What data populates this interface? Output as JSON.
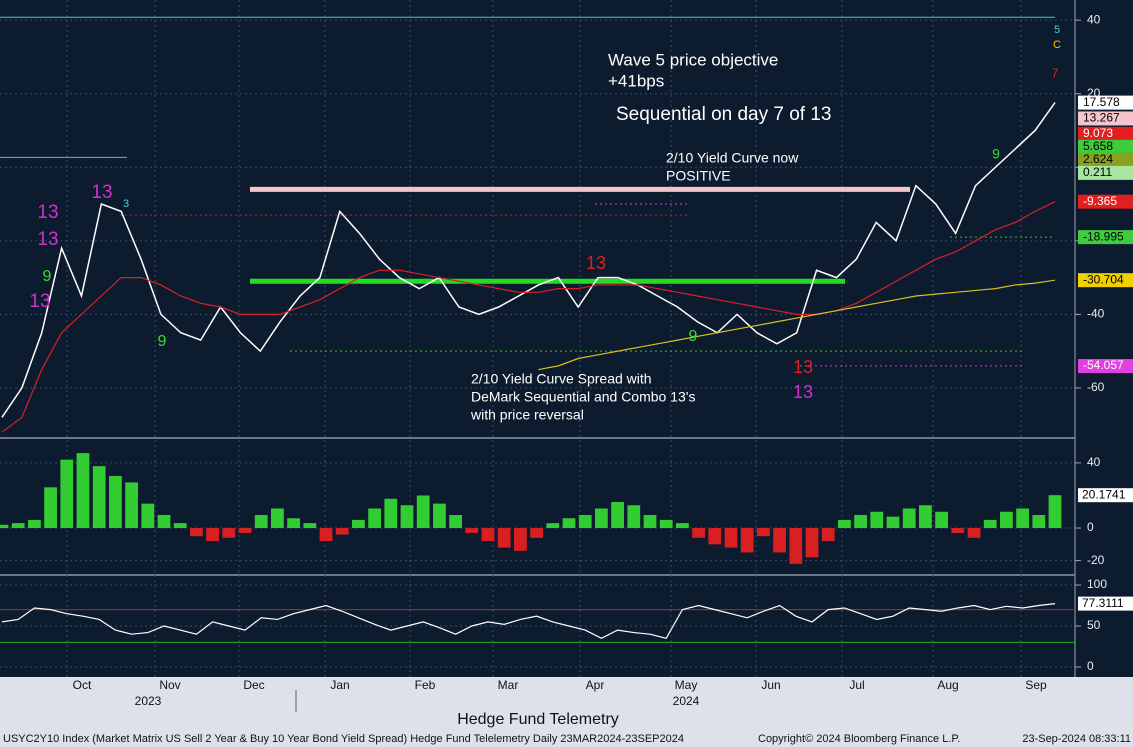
{
  "chart_data": [
    {
      "type": "line",
      "ylim": [
        -72.8,
        41.4
      ],
      "yticks": [
        -60,
        -40,
        -20,
        0,
        20,
        40
      ],
      "grid": true,
      "series": [
        {
          "name": "USYC2Y10 Index",
          "color": "#ffffff",
          "values": [
            -68,
            -60,
            -45,
            -22,
            -35,
            -10,
            -12,
            -25,
            -40,
            -45,
            -47,
            -38,
            -45,
            -50,
            -42,
            -35,
            -30,
            -12,
            -18,
            -25,
            -30,
            -33,
            -30,
            -38,
            -40,
            -38,
            -35,
            -32,
            -30,
            -38,
            -30,
            -30,
            -32,
            -35,
            -38,
            -42,
            -45,
            -40,
            -45,
            -48,
            -45,
            -28,
            -30,
            -25,
            -15,
            -20,
            -5,
            -10,
            -18,
            -5,
            0,
            5,
            10,
            17.578
          ]
        },
        {
          "name": "MA red",
          "color": "#d8202a",
          "values": [
            -72,
            -68,
            -55,
            -45,
            -40,
            -35,
            -30,
            -30,
            -32,
            -35,
            -37,
            -38,
            -40,
            -40,
            -40,
            -38,
            -36,
            -33,
            -30,
            -28,
            -28,
            -29,
            -30,
            -31,
            -32,
            -33,
            -34,
            -34,
            -33,
            -33,
            -32,
            -32,
            -32,
            -33,
            -34,
            -35,
            -36,
            -37,
            -38,
            -39,
            -40,
            -40,
            -39,
            -37,
            -34,
            -31,
            -28,
            -25,
            -23,
            -20,
            -17,
            -15,
            -12,
            -9.365
          ]
        },
        {
          "name": "MA yellow",
          "color": "#d4c020",
          "values": [
            null,
            null,
            null,
            null,
            null,
            null,
            null,
            null,
            null,
            null,
            null,
            null,
            null,
            null,
            null,
            null,
            null,
            null,
            null,
            null,
            null,
            null,
            null,
            null,
            null,
            null,
            null,
            -55,
            -54,
            -52,
            -51,
            -50,
            -49,
            -48,
            -47,
            -46,
            -45,
            -44,
            -43,
            -42,
            -41,
            -40,
            -39,
            -38,
            -37,
            -36,
            -35,
            -34.5,
            -34,
            -33.5,
            -33,
            -32,
            -31.5,
            -30.704
          ]
        }
      ],
      "price_tags": [
        {
          "value": 17.578,
          "color": "#ffffff",
          "text_color": "#000000"
        },
        {
          "value": 13.267,
          "color": "#f4c6cc",
          "text_color": "#000000"
        },
        {
          "value": 9.073,
          "color": "#e02020",
          "text_color": "#ffffff"
        },
        {
          "value": 5.658,
          "color": "#3ccc3c",
          "text_color": "#000000"
        },
        {
          "value": 2.624,
          "color": "#8aa020",
          "text_color": "#000000"
        },
        {
          "value": 0.211,
          "color": "#a8e6a0",
          "text_color": "#000000"
        },
        {
          "value": -9.365,
          "color": "#e02020",
          "text_color": "#ffffff"
        },
        {
          "value": -18.995,
          "color": "#3ccc3c",
          "text_color": "#000000"
        },
        {
          "value": -30.704,
          "color": "#f0d000",
          "text_color": "#000000"
        },
        {
          "value": -54.057,
          "color": "#e040e0",
          "text_color": "#ffffff"
        }
      ],
      "levels": [
        {
          "value": 40.8,
          "color": "#40c8d0"
        },
        {
          "value": 2.7,
          "color": "#40c8d0"
        },
        {
          "value": -6,
          "color": "#f4c6cc"
        },
        {
          "value": -31,
          "color": "#22dd22"
        },
        {
          "value": -13,
          "color": "#c02020"
        },
        {
          "value": -10,
          "color": "#c040e0"
        },
        {
          "value": -50,
          "color": "#30c030"
        },
        {
          "value": -54,
          "color": "#c040e0"
        },
        {
          "value": -19,
          "color": "#30c030"
        }
      ],
      "annotations": [
        "Wave 5 price objective",
        "+41bps",
        "Sequential on day 7 of 13",
        "2/10 Yield Curve now",
        "POSITIVE",
        "2/10 Yield Curve Spread with",
        "DeMark Sequential and Combo 13's",
        "with price reversal"
      ],
      "demark_labels": [
        {
          "text": "13",
          "color": "#d030d0"
        },
        {
          "text": "13",
          "color": "#d030d0"
        },
        {
          "text": "13",
          "color": "#d030d0"
        },
        {
          "text": "13",
          "color": "#d030d0"
        },
        {
          "text": "9",
          "color": "#30e030"
        },
        {
          "text": "3",
          "color": "#40d0e0"
        },
        {
          "text": "13",
          "color": "#e02020"
        },
        {
          "text": "9",
          "color": "#30e030"
        },
        {
          "text": "13",
          "color": "#d030d0"
        },
        {
          "text": "13",
          "color": "#e02020"
        },
        {
          "text": "9",
          "color": "#30e030"
        },
        {
          "text": "9",
          "color": "#30e030"
        },
        {
          "text": "5",
          "color": "#40d0e0"
        },
        {
          "text": "C",
          "color": "#f0d000"
        },
        {
          "text": "7",
          "color": "#e02020"
        }
      ]
    },
    {
      "type": "bar",
      "ylim": [
        -27,
        51
      ],
      "yticks": [
        -20,
        0,
        40
      ],
      "positive_color": "#32cd32",
      "negative_color": "#d82020",
      "values": [
        2,
        3,
        5,
        25,
        42,
        46,
        38,
        32,
        28,
        15,
        8,
        3,
        -5,
        -8,
        -6,
        -3,
        8,
        12,
        6,
        3,
        -8,
        -4,
        5,
        12,
        18,
        14,
        20,
        15,
        8,
        -3,
        -8,
        -12,
        -14,
        -6,
        3,
        6,
        8,
        12,
        16,
        14,
        8,
        5,
        3,
        -6,
        -10,
        -12,
        -15,
        -5,
        -15,
        -22,
        -18,
        -8,
        5,
        8,
        10,
        7,
        12,
        14,
        10,
        -3,
        -6,
        5,
        10,
        12,
        8,
        20.1741
      ]
    },
    {
      "type": "line",
      "ylim": [
        -9.8,
        109.8
      ],
      "yticks": [
        0,
        50,
        100
      ],
      "levels": [
        {
          "value": 70,
          "color": "#d02020"
        },
        {
          "value": 30,
          "color": "#20b020"
        }
      ],
      "series": [
        {
          "name": "RSI",
          "color": "#ffffff",
          "values": [
            55,
            58,
            72,
            70,
            65,
            62,
            58,
            45,
            40,
            42,
            50,
            45,
            40,
            55,
            50,
            45,
            60,
            58,
            65,
            70,
            75,
            68,
            60,
            52,
            45,
            50,
            55,
            48,
            40,
            50,
            55,
            52,
            58,
            62,
            55,
            50,
            45,
            35,
            45,
            42,
            40,
            35,
            70,
            75,
            70,
            65,
            60,
            68,
            75,
            62,
            55,
            70,
            72,
            65,
            58,
            62,
            72,
            70,
            68,
            72,
            75,
            70,
            74,
            72,
            75,
            77.3111
          ]
        }
      ]
    }
  ],
  "x_axis": {
    "months": [
      "Oct",
      "Nov",
      "Dec",
      "Jan",
      "Feb",
      "Mar",
      "Apr",
      "May",
      "Jun",
      "Jul",
      "Aug",
      "Sep"
    ],
    "years": [
      "2023",
      "2024"
    ]
  },
  "footer": {
    "title": "Hedge Fund Telemetry",
    "description": "USYC2Y10 Index (Market Matrix US Sell 2 Year & Buy 10 Year Bond Yield Spread) Hedge Fund Telelemetry  Daily 23MAR2024-23SEP2024",
    "copyright": "Copyright© 2024 Bloomberg Finance L.P.",
    "timestamp": "23-Sep-2024 08:33:11"
  }
}
